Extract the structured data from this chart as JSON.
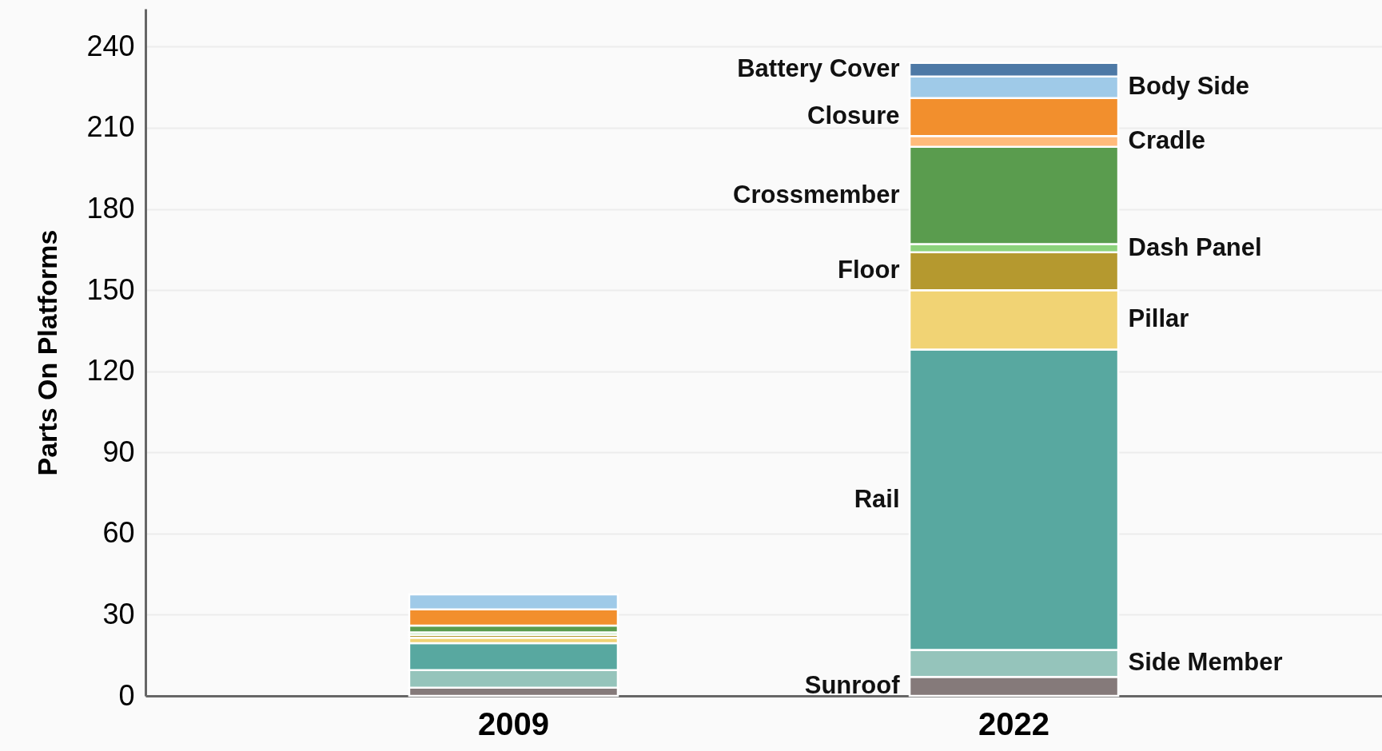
{
  "chart_data": {
    "type": "bar",
    "stacked": true,
    "ylabel": "Parts On Platforms",
    "categories": [
      "2009",
      "2022"
    ],
    "ylim": [
      0,
      254
    ],
    "yticks": [
      0,
      30,
      60,
      90,
      120,
      150,
      180,
      210,
      240
    ],
    "grid": "y",
    "series": [
      {
        "name": "Sunroof",
        "color": "#857a7a",
        "values": [
          3,
          7
        ]
      },
      {
        "name": "Side Member",
        "color": "#95c4bb",
        "values": [
          6.5,
          10
        ]
      },
      {
        "name": "Rail",
        "color": "#58a8a0",
        "values": [
          10,
          111
        ]
      },
      {
        "name": "Pillar",
        "color": "#f1d374",
        "values": [
          2,
          22
        ]
      },
      {
        "name": "Floor",
        "color": "#b5992f",
        "values": [
          1,
          14
        ]
      },
      {
        "name": "Dash Panel",
        "color": "#8cd27c",
        "values": [
          1,
          3
        ]
      },
      {
        "name": "Crossmember",
        "color": "#5a9c4e",
        "values": [
          2.5,
          36
        ]
      },
      {
        "name": "Cradle",
        "color": "#ffbb7b",
        "values": [
          0,
          4
        ]
      },
      {
        "name": "Closure",
        "color": "#f28f2d",
        "values": [
          6,
          14
        ]
      },
      {
        "name": "Body Side",
        "color": "#9fcae8",
        "values": [
          5.5,
          8
        ]
      },
      {
        "name": "Battery Cover",
        "color": "#4d79a6",
        "values": [
          0,
          5
        ]
      }
    ]
  }
}
